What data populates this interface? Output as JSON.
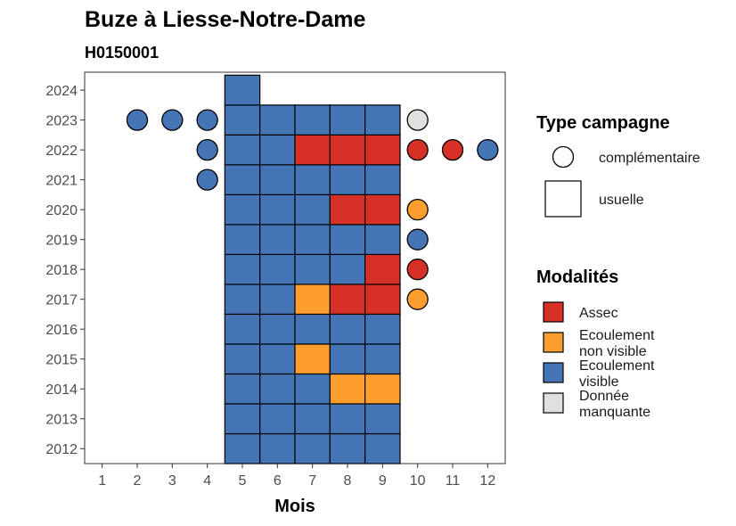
{
  "chart_data": {
    "type": "heatmap",
    "title": "Buze à Liesse-Notre-Dame",
    "subtitle": "H0150001",
    "xlabel": "Mois",
    "ylabel": "",
    "x_ticks": [
      1,
      2,
      3,
      4,
      5,
      6,
      7,
      8,
      9,
      10,
      11,
      12
    ],
    "y_ticks": [
      2012,
      2013,
      2014,
      2015,
      2016,
      2017,
      2018,
      2019,
      2020,
      2021,
      2022,
      2023,
      2024
    ],
    "xlim": [
      0.5,
      12.5
    ],
    "ylim": [
      2011.5,
      2024.6
    ],
    "colors": {
      "assec": "#d73027",
      "ecoulement_non_visible": "#fd9e2e",
      "ecoulement_visible": "#4575b4",
      "donnee_manquante": "#e0e0e0"
    },
    "usuelle": [
      {
        "year": 2012,
        "month": 5,
        "mod": "ecoulement_visible"
      },
      {
        "year": 2012,
        "month": 6,
        "mod": "ecoulement_visible"
      },
      {
        "year": 2012,
        "month": 7,
        "mod": "ecoulement_visible"
      },
      {
        "year": 2012,
        "month": 8,
        "mod": "ecoulement_visible"
      },
      {
        "year": 2012,
        "month": 9,
        "mod": "ecoulement_visible"
      },
      {
        "year": 2013,
        "month": 5,
        "mod": "ecoulement_visible"
      },
      {
        "year": 2013,
        "month": 6,
        "mod": "ecoulement_visible"
      },
      {
        "year": 2013,
        "month": 7,
        "mod": "ecoulement_visible"
      },
      {
        "year": 2013,
        "month": 8,
        "mod": "ecoulement_visible"
      },
      {
        "year": 2013,
        "month": 9,
        "mod": "ecoulement_visible"
      },
      {
        "year": 2014,
        "month": 5,
        "mod": "ecoulement_visible"
      },
      {
        "year": 2014,
        "month": 6,
        "mod": "ecoulement_visible"
      },
      {
        "year": 2014,
        "month": 7,
        "mod": "ecoulement_visible"
      },
      {
        "year": 2014,
        "month": 8,
        "mod": "ecoulement_non_visible"
      },
      {
        "year": 2014,
        "month": 9,
        "mod": "ecoulement_non_visible"
      },
      {
        "year": 2015,
        "month": 5,
        "mod": "ecoulement_visible"
      },
      {
        "year": 2015,
        "month": 6,
        "mod": "ecoulement_visible"
      },
      {
        "year": 2015,
        "month": 7,
        "mod": "ecoulement_non_visible"
      },
      {
        "year": 2015,
        "month": 8,
        "mod": "ecoulement_visible"
      },
      {
        "year": 2015,
        "month": 9,
        "mod": "ecoulement_visible"
      },
      {
        "year": 2016,
        "month": 5,
        "mod": "ecoulement_visible"
      },
      {
        "year": 2016,
        "month": 6,
        "mod": "ecoulement_visible"
      },
      {
        "year": 2016,
        "month": 7,
        "mod": "ecoulement_visible"
      },
      {
        "year": 2016,
        "month": 8,
        "mod": "ecoulement_visible"
      },
      {
        "year": 2016,
        "month": 9,
        "mod": "ecoulement_visible"
      },
      {
        "year": 2017,
        "month": 5,
        "mod": "ecoulement_visible"
      },
      {
        "year": 2017,
        "month": 6,
        "mod": "ecoulement_visible"
      },
      {
        "year": 2017,
        "month": 7,
        "mod": "ecoulement_non_visible"
      },
      {
        "year": 2017,
        "month": 8,
        "mod": "assec"
      },
      {
        "year": 2017,
        "month": 9,
        "mod": "assec"
      },
      {
        "year": 2018,
        "month": 5,
        "mod": "ecoulement_visible"
      },
      {
        "year": 2018,
        "month": 6,
        "mod": "ecoulement_visible"
      },
      {
        "year": 2018,
        "month": 7,
        "mod": "ecoulement_visible"
      },
      {
        "year": 2018,
        "month": 8,
        "mod": "ecoulement_visible"
      },
      {
        "year": 2018,
        "month": 9,
        "mod": "assec"
      },
      {
        "year": 2019,
        "month": 5,
        "mod": "ecoulement_visible"
      },
      {
        "year": 2019,
        "month": 6,
        "mod": "ecoulement_visible"
      },
      {
        "year": 2019,
        "month": 7,
        "mod": "ecoulement_visible"
      },
      {
        "year": 2019,
        "month": 8,
        "mod": "ecoulement_visible"
      },
      {
        "year": 2019,
        "month": 9,
        "mod": "ecoulement_visible"
      },
      {
        "year": 2020,
        "month": 5,
        "mod": "ecoulement_visible"
      },
      {
        "year": 2020,
        "month": 6,
        "mod": "ecoulement_visible"
      },
      {
        "year": 2020,
        "month": 7,
        "mod": "ecoulement_visible"
      },
      {
        "year": 2020,
        "month": 8,
        "mod": "assec"
      },
      {
        "year": 2020,
        "month": 9,
        "mod": "assec"
      },
      {
        "year": 2021,
        "month": 5,
        "mod": "ecoulement_visible"
      },
      {
        "year": 2021,
        "month": 6,
        "mod": "ecoulement_visible"
      },
      {
        "year": 2021,
        "month": 7,
        "mod": "ecoulement_visible"
      },
      {
        "year": 2021,
        "month": 8,
        "mod": "ecoulement_visible"
      },
      {
        "year": 2021,
        "month": 9,
        "mod": "ecoulement_visible"
      },
      {
        "year": 2022,
        "month": 5,
        "mod": "ecoulement_visible"
      },
      {
        "year": 2022,
        "month": 6,
        "mod": "ecoulement_visible"
      },
      {
        "year": 2022,
        "month": 7,
        "mod": "assec"
      },
      {
        "year": 2022,
        "month": 8,
        "mod": "assec"
      },
      {
        "year": 2022,
        "month": 9,
        "mod": "assec"
      },
      {
        "year": 2023,
        "month": 5,
        "mod": "ecoulement_visible"
      },
      {
        "year": 2023,
        "month": 6,
        "mod": "ecoulement_visible"
      },
      {
        "year": 2023,
        "month": 7,
        "mod": "ecoulement_visible"
      },
      {
        "year": 2023,
        "month": 8,
        "mod": "ecoulement_visible"
      },
      {
        "year": 2023,
        "month": 9,
        "mod": "ecoulement_visible"
      },
      {
        "year": 2024,
        "month": 5,
        "mod": "ecoulement_visible"
      }
    ],
    "complementaire": [
      {
        "year": 2023,
        "month": 2,
        "mod": "ecoulement_visible"
      },
      {
        "year": 2023,
        "month": 3,
        "mod": "ecoulement_visible"
      },
      {
        "year": 2023,
        "month": 4,
        "mod": "ecoulement_visible"
      },
      {
        "year": 2023,
        "month": 10,
        "mod": "donnee_manquante"
      },
      {
        "year": 2022,
        "month": 4,
        "mod": "ecoulement_visible"
      },
      {
        "year": 2022,
        "month": 10,
        "mod": "assec"
      },
      {
        "year": 2022,
        "month": 11,
        "mod": "assec"
      },
      {
        "year": 2022,
        "month": 12,
        "mod": "ecoulement_visible"
      },
      {
        "year": 2021,
        "month": 4,
        "mod": "ecoulement_visible"
      },
      {
        "year": 2020,
        "month": 10,
        "mod": "ecoulement_non_visible"
      },
      {
        "year": 2019,
        "month": 10,
        "mod": "ecoulement_visible"
      },
      {
        "year": 2018,
        "month": 10,
        "mod": "assec"
      },
      {
        "year": 2017,
        "month": 10,
        "mod": "ecoulement_non_visible"
      }
    ],
    "legend": {
      "position": "right",
      "type_title": "Type campagne",
      "type_items": [
        "complémentaire",
        "usuelle"
      ],
      "mod_title": "Modalités",
      "mod_items": [
        {
          "key": "assec",
          "lines": [
            "Assec"
          ]
        },
        {
          "key": "ecoulement_non_visible",
          "lines": [
            "Ecoulement",
            "non visible"
          ]
        },
        {
          "key": "ecoulement_visible",
          "lines": [
            "Ecoulement",
            "visible"
          ]
        },
        {
          "key": "donnee_manquante",
          "lines": [
            "Donnée",
            "manquante"
          ]
        }
      ]
    }
  }
}
